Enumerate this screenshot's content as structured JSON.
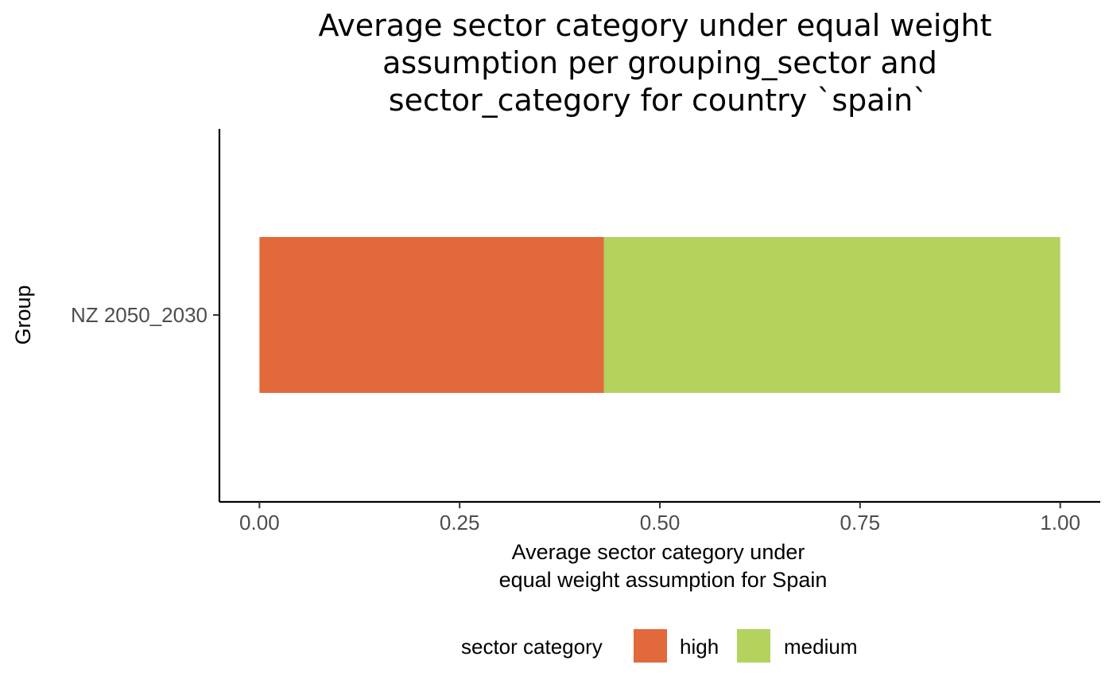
{
  "chart_data": {
    "type": "bar",
    "orientation": "horizontal",
    "stacked": true,
    "title_lines": [
      "Average sector category under equal weight",
      "assumption per grouping_sector and",
      "sector_category for country `spain`"
    ],
    "xlabel_lines": [
      "Average sector category under",
      "equal weight assumption for Spain"
    ],
    "ylabel": "Group",
    "categories": [
      "NZ 2050_2030"
    ],
    "series": [
      {
        "name": "high",
        "color": "#e2693c",
        "values": [
          0.43
        ]
      },
      {
        "name": "medium",
        "color": "#b3d25e",
        "values": [
          0.57
        ]
      }
    ],
    "xticks": [
      "0.00",
      "0.25",
      "0.50",
      "0.75",
      "1.00"
    ],
    "xtick_values": [
      0,
      0.25,
      0.5,
      0.75,
      1.0
    ],
    "xlim": [
      -0.05,
      1.05
    ],
    "grid": false,
    "legend": {
      "title": "sector category",
      "position": "bottom"
    }
  }
}
